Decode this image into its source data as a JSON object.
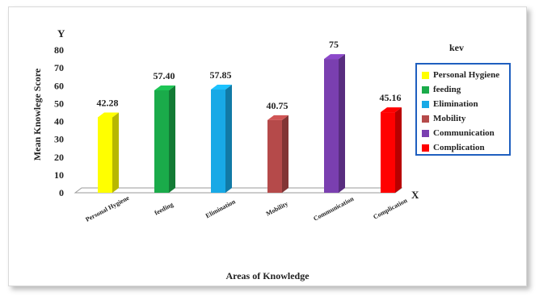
{
  "chart_data": {
    "type": "bar",
    "style": "3d-column",
    "categories": [
      "Personal Hygiene",
      "feeding",
      "Elimination",
      "Mobility",
      "Communication",
      "Complication"
    ],
    "values": [
      42.28,
      57.4,
      57.85,
      40.75,
      75,
      45.16
    ],
    "data_labels": [
      "42.28",
      "57.40",
      "57.85",
      "40.75",
      "75",
      "45.16"
    ],
    "colors": [
      "#ffff00",
      "#1aab4a",
      "#18a9e6",
      "#b54a4a",
      "#7a3fb0",
      "#ff0000"
    ],
    "y_axis_letter": "Y",
    "x_axis_letter": "X",
    "ylabel": "Mean Knowlege Score",
    "xlabel": "Areas of Knowledge",
    "ylim": [
      0,
      80
    ],
    "yticks": [
      0,
      10,
      20,
      30,
      40,
      50,
      60,
      70,
      80
    ],
    "grid": false,
    "legend": {
      "title": "kev",
      "placement": "right",
      "entries": [
        "Personal Hygiene",
        "feeding",
        "Elimination",
        "Mobility",
        "Communication",
        "Complication"
      ]
    }
  }
}
